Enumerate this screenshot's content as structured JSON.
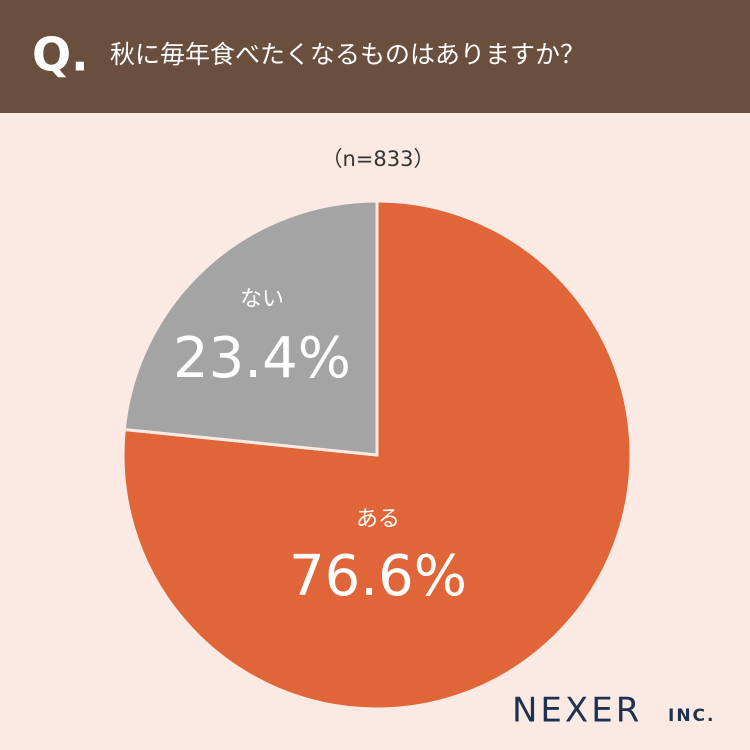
{
  "header": {
    "mark": "Q."
  },
  "chart_data": {
    "type": "pie",
    "title": "秋に毎年食べたくなるものはありますか？",
    "subtitle": "（n=833）",
    "categories": [
      "ある",
      "ない"
    ],
    "values": [
      76.6,
      23.4
    ],
    "value_labels": [
      "76.6%",
      "23.4%"
    ],
    "colors": [
      "#e0663a",
      "#a4a4a4"
    ]
  },
  "footer": {
    "logo": "NEXER",
    "logo_suffix": "INC."
  }
}
